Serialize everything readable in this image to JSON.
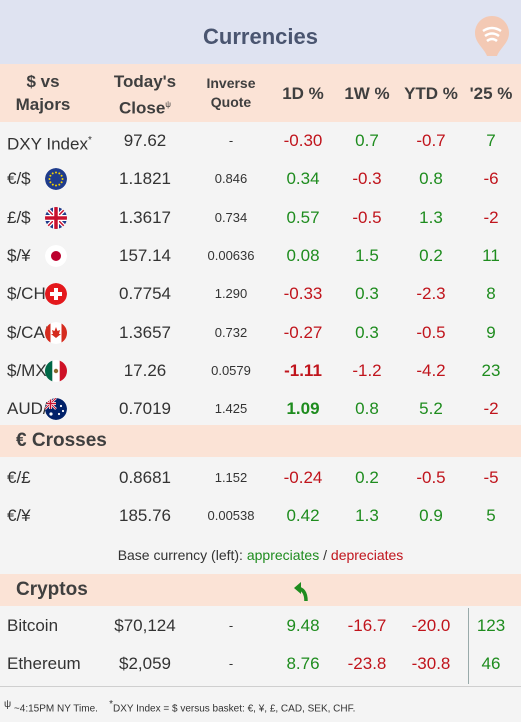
{
  "title": "Currencies",
  "header": {
    "pair": "$ vs Majors",
    "close_line1": "Today's",
    "close_line2": "Close",
    "close_mark": "ψ",
    "inverse_line1": "Inverse",
    "inverse_line2": "Quote",
    "d1": "1D %",
    "w1": "1W %",
    "ytd": "YTD %",
    "y25": "'25 %"
  },
  "majors": [
    {
      "name": "DXY Index",
      "mark": "*",
      "flag": "",
      "close": "97.62",
      "inverse": "-",
      "d1": "-0.30",
      "w1": "0.7",
      "ytd": "-0.7",
      "y25": "7"
    },
    {
      "name": "€/$",
      "mark": "",
      "flag": "eu-flag-icon",
      "close": "1.1821",
      "inverse": "0.846",
      "d1": "0.34",
      "w1": "-0.3",
      "ytd": "0.8",
      "y25": "-6"
    },
    {
      "name": "£/$",
      "mark": "",
      "flag": "uk-flag-icon",
      "close": "1.3617",
      "inverse": "0.734",
      "d1": "0.57",
      "w1": "-0.5",
      "ytd": "1.3",
      "y25": "-2"
    },
    {
      "name": "$/¥",
      "mark": "",
      "flag": "japan-flag-icon",
      "close": "157.14",
      "inverse": "0.00636",
      "d1": "0.08",
      "w1": "1.5",
      "ytd": "0.2",
      "y25": "11"
    },
    {
      "name": "$/CHF",
      "mark": "",
      "flag": "swiss-flag-icon",
      "close": "0.7754",
      "inverse": "1.290",
      "d1": "-0.33",
      "w1": "0.3",
      "ytd": "-2.3",
      "y25": "8"
    },
    {
      "name": "$/CAD",
      "mark": "",
      "flag": "canada-flag-icon",
      "close": "1.3657",
      "inverse": "0.732",
      "d1": "-0.27",
      "w1": "0.3",
      "ytd": "-0.5",
      "y25": "9"
    },
    {
      "name": "$/MXN",
      "mark": "",
      "flag": "mexico-flag-icon",
      "close": "17.26",
      "inverse": "0.0579",
      "d1": "-1.11",
      "w1": "-1.2",
      "ytd": "-4.2",
      "y25": "23"
    },
    {
      "name": "AUD/$",
      "mark": "",
      "flag": "australia-flag-icon",
      "close": "0.7019",
      "inverse": "1.425",
      "d1": "1.09",
      "w1": "0.8",
      "ytd": "5.2",
      "y25": "-2"
    }
  ],
  "crosses_title": "€ Crosses",
  "crosses": [
    {
      "name": "€/£",
      "close": "0.8681",
      "inverse": "1.152",
      "d1": "-0.24",
      "w1": "0.2",
      "ytd": "-0.5",
      "y25": "-5"
    },
    {
      "name": "€/¥",
      "close": "185.76",
      "inverse": "0.00538",
      "d1": "0.42",
      "w1": "1.3",
      "ytd": "0.9",
      "y25": "5"
    }
  ],
  "legend": {
    "prefix": "Base currency (left): ",
    "up": "appreciates",
    "sep": " / ",
    "down": "depreciates"
  },
  "cryptos_title": "Cryptos",
  "cryptos_icon": "green-up-left-arrow-icon",
  "cryptos": [
    {
      "name": "Bitcoin",
      "close": "$70,124",
      "inverse": "-",
      "d1": "9.48",
      "w1": "-16.7",
      "ytd": "-20.0",
      "y25": "123"
    },
    {
      "name": "Ethereum",
      "close": "$2,059",
      "inverse": "-",
      "d1": "8.76",
      "w1": "-23.8",
      "ytd": "-30.8",
      "y25": "46"
    }
  ],
  "footer": {
    "time_mark": "ψ",
    "time": " ~4:15PM NY Time.",
    "dxy_mark": "*",
    "dxy": "DXY Index = $ versus basket: €, ¥, £, CAD, SEK, CHF."
  },
  "colors": {
    "positive": "#1e8c1e",
    "negative": "#c0141c",
    "header_bg": "#fbe3d6",
    "title_bg": "#dfe3f1"
  }
}
